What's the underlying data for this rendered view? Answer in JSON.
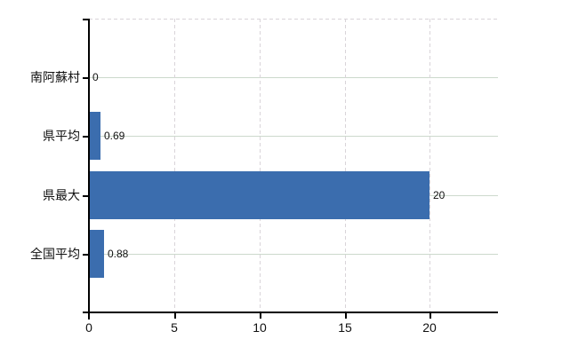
{
  "chart_data": {
    "type": "bar",
    "orientation": "horizontal",
    "title": "",
    "xlabel": "",
    "ylabel": "",
    "categories": [
      "南阿蘇村",
      "県平均",
      "県最大",
      "全国平均"
    ],
    "values": [
      0,
      0.69,
      20,
      0.88
    ],
    "value_labels": [
      "0",
      "0.69",
      "20",
      "0.88"
    ],
    "x_ticks": [
      0,
      5,
      10,
      15,
      20
    ],
    "x_tick_labels": [
      "0",
      "5",
      "10",
      "15",
      "20"
    ],
    "xlim": [
      0,
      24
    ],
    "grid": "on",
    "legend_position": "none",
    "colors": {
      "bar": "#3b6dae",
      "axis": "#000000",
      "h_gridline": "#ccd9cc",
      "v_gridline": "#d9d4d9",
      "top_border": "#d9d4d9",
      "text": "#111111",
      "background": "#ffffff"
    }
  }
}
